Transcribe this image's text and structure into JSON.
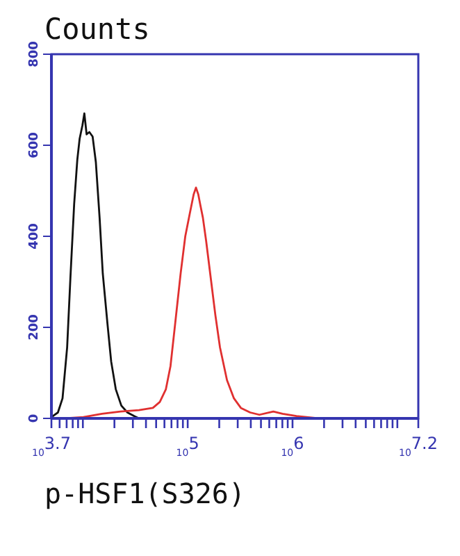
{
  "chart_data": {
    "type": "line",
    "title": "Counts",
    "xlabel": "p-HSF1(S326)",
    "log": "x",
    "xlim": [
      5012,
      15849000
    ],
    "ylim": [
      0,
      800
    ],
    "xticks": [
      {
        "value": 5012,
        "label": "10$^{3.7}$"
      },
      {
        "value": 6000,
        "label": null
      },
      {
        "value": 7000,
        "label": null
      },
      {
        "value": 8000,
        "label": null
      },
      {
        "value": 9000,
        "label": null
      },
      {
        "value": 10000,
        "label": null
      },
      {
        "value": 20000,
        "label": null
      },
      {
        "value": 30000,
        "label": null
      },
      {
        "value": 40000,
        "label": null
      },
      {
        "value": 50000,
        "label": null
      },
      {
        "value": 60000,
        "label": null
      },
      {
        "value": 70000,
        "label": null
      },
      {
        "value": 80000,
        "label": null
      },
      {
        "value": 90000,
        "label": null
      },
      {
        "value": 100000,
        "label": "10$^{5}$"
      },
      {
        "value": 200000,
        "label": null
      },
      {
        "value": 300000,
        "label": null
      },
      {
        "value": 400000,
        "label": null
      },
      {
        "value": 500000,
        "label": null
      },
      {
        "value": 600000,
        "label": null
      },
      {
        "value": 700000,
        "label": null
      },
      {
        "value": 800000,
        "label": null
      },
      {
        "value": 900000,
        "label": null
      },
      {
        "value": 1000000,
        "label": "10$^{6}$"
      },
      {
        "value": 2000000,
        "label": null
      },
      {
        "value": 3000000,
        "label": null
      },
      {
        "value": 4000000,
        "label": null
      },
      {
        "value": 5000000,
        "label": null
      },
      {
        "value": 6000000,
        "label": null
      },
      {
        "value": 7000000,
        "label": null
      },
      {
        "value": 8000000,
        "label": null
      },
      {
        "value": 9000000,
        "label": null
      },
      {
        "value": 10000000,
        "label": null
      },
      {
        "value": 15849000,
        "label": "10$^{7.2}$"
      }
    ],
    "yticks": [
      0,
      200,
      400,
      600,
      800
    ],
    "grid": false,
    "marker": "none",
    "line_style": "solid",
    "series": [
      {
        "color": "#111111",
        "x": [
          5012,
          5781,
          6397,
          7079,
          7603,
          8260,
          8851,
          9311,
          9908,
          10330,
          10860,
          11530,
          12390,
          13300,
          14450,
          15490,
          17180,
          18620,
          20610,
          23280,
          26610,
          30970,
          34280
        ],
        "values": [
          3,
          13,
          44,
          156,
          308,
          471,
          568,
          614,
          644,
          670,
          624,
          629,
          619,
          563,
          440,
          318,
          207,
          125,
          64,
          28,
          13,
          5,
          0
        ]
      },
      {
        "color": "#e03030",
        "x": [
          6730,
          10120,
          15210,
          22800,
          34280,
          46560,
          54200,
          61940,
          68550,
          75860,
          85700,
          94840,
          104950,
          114000,
          119950,
          126200,
          132700,
          139600,
          149900,
          166000,
          183650,
          203200,
          237100,
          276100,
          321400,
          394500,
          483100,
          656100,
          803500,
          1091000,
          1641000,
          2009000
        ],
        "values": [
          0,
          3,
          10,
          15,
          18,
          23,
          36,
          64,
          115,
          207,
          319,
          400,
          451,
          492,
          507,
          492,
          466,
          441,
          390,
          308,
          227,
          156,
          84,
          44,
          23,
          13,
          8,
          15,
          10,
          5,
          1,
          0
        ]
      }
    ]
  }
}
